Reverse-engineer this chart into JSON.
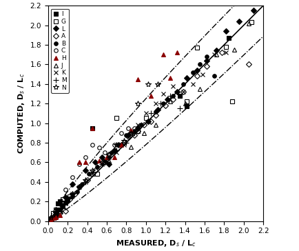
{
  "xlabel": "MEASURED, D$_s$ / L$_c$",
  "ylabel": "COMPUTED, D$_s$ / L$_c$",
  "xlim": [
    0.0,
    2.2
  ],
  "ylim": [
    0.0,
    2.2
  ],
  "xticks": [
    0.0,
    0.2,
    0.4,
    0.6,
    0.8,
    1.0,
    1.2,
    1.4,
    1.6,
    1.8,
    2.0,
    2.2
  ],
  "yticks": [
    0.0,
    0.2,
    0.4,
    0.6,
    0.8,
    1.0,
    1.2,
    1.4,
    1.6,
    1.8,
    2.0,
    2.2
  ],
  "series": {
    "I": {
      "marker": "s",
      "color": "#000000",
      "filled": true,
      "ms": 5,
      "x": [
        0.03,
        0.05,
        0.07,
        0.09,
        0.1,
        0.12,
        0.15,
        0.18,
        0.2,
        0.45,
        1.35,
        1.42,
        1.85
      ],
      "y": [
        0.02,
        0.04,
        0.05,
        0.12,
        0.18,
        0.2,
        0.15,
        0.19,
        0.23,
        0.95,
        1.28,
        1.17,
        1.87
      ]
    },
    "G": {
      "marker": "s",
      "color": "#000000",
      "filled": false,
      "ms": 5,
      "x": [
        0.05,
        0.08,
        0.12,
        0.15,
        0.22,
        0.5,
        0.7,
        0.92,
        1.0,
        1.42,
        1.52,
        1.82,
        1.88,
        2.08
      ],
      "y": [
        0.08,
        0.12,
        0.1,
        0.22,
        0.25,
        0.48,
        1.05,
        0.92,
        1.05,
        1.22,
        1.77,
        1.78,
        1.22,
        2.03
      ]
    },
    "L": {
      "marker": "D",
      "color": "#000000",
      "filled": true,
      "ms": 4,
      "x": [
        0.03,
        0.05,
        0.08,
        0.12,
        0.18,
        0.25,
        0.38,
        0.48,
        0.55,
        0.62,
        0.68,
        0.75,
        0.82,
        0.92,
        1.02,
        1.12,
        1.22,
        1.32,
        1.42,
        1.52,
        1.62,
        1.72,
        1.82,
        1.95,
        2.1
      ],
      "y": [
        0.01,
        0.03,
        0.06,
        0.18,
        0.24,
        0.38,
        0.52,
        0.6,
        0.65,
        0.58,
        0.72,
        0.78,
        0.88,
        0.95,
        1.02,
        1.14,
        1.24,
        1.32,
        1.46,
        1.54,
        1.64,
        1.74,
        1.94,
        2.04,
        2.15
      ]
    },
    "A": {
      "marker": "D",
      "color": "#000000",
      "filled": false,
      "ms": 4,
      "x": [
        0.08,
        0.12,
        0.18,
        0.22,
        0.28,
        0.32,
        0.4,
        0.48,
        0.52,
        0.58,
        0.62,
        0.68,
        0.72,
        0.78,
        0.82,
        0.88,
        0.92,
        0.98,
        1.05,
        1.1,
        1.2,
        1.28,
        1.38,
        1.52,
        1.62,
        1.78,
        2.05
      ],
      "y": [
        0.04,
        0.08,
        0.1,
        0.22,
        0.28,
        0.35,
        0.42,
        0.52,
        0.58,
        0.6,
        0.68,
        0.72,
        0.78,
        0.8,
        0.86,
        0.88,
        0.92,
        0.98,
        1.02,
        1.08,
        1.18,
        1.24,
        1.32,
        1.48,
        1.58,
        1.72,
        1.6
      ]
    },
    "B": {
      "marker": "o",
      "color": "#000000",
      "filled": true,
      "ms": 4,
      "x": [
        0.03,
        0.05,
        0.08,
        0.12,
        0.15,
        0.2,
        0.25,
        0.3,
        0.35,
        0.42,
        0.5,
        0.58,
        0.65,
        0.72,
        0.8,
        0.88,
        0.95,
        1.02,
        1.1,
        1.18,
        1.28,
        1.38,
        1.48,
        1.55,
        1.62,
        1.7
      ],
      "y": [
        0.01,
        0.03,
        0.06,
        0.12,
        0.15,
        0.2,
        0.25,
        0.3,
        0.38,
        0.48,
        0.55,
        0.62,
        0.7,
        0.78,
        0.88,
        0.92,
        0.98,
        1.02,
        1.12,
        1.2,
        1.28,
        1.4,
        1.52,
        1.6,
        1.68,
        1.48
      ]
    },
    "C": {
      "marker": "o",
      "color": "#000000",
      "filled": false,
      "ms": 4,
      "x": [
        0.08,
        0.12,
        0.18,
        0.25,
        0.32,
        0.38,
        0.45,
        0.52,
        0.58,
        0.62,
        0.68,
        0.75,
        0.82,
        0.88
      ],
      "y": [
        0.08,
        0.12,
        0.32,
        0.45,
        0.58,
        0.65,
        0.78,
        0.75,
        0.7,
        0.65,
        0.78,
        0.9,
        0.95,
        0.95
      ]
    },
    "H": {
      "marker": "^",
      "color": "#8B0000",
      "filled": true,
      "ms": 5,
      "x": [
        0.03,
        0.05,
        0.08,
        0.12,
        0.32,
        0.38,
        0.45,
        0.52,
        0.6,
        0.68,
        0.75,
        0.85,
        0.92,
        1.05,
        1.18,
        1.25,
        1.32
      ],
      "y": [
        0.01,
        0.03,
        0.04,
        0.06,
        0.6,
        0.6,
        0.95,
        0.62,
        0.65,
        0.65,
        0.78,
        0.93,
        1.45,
        1.28,
        1.7,
        1.46,
        1.72
      ]
    },
    "J": {
      "marker": "^",
      "color": "#000000",
      "filled": false,
      "ms": 5,
      "x": [
        0.45,
        0.62,
        0.85,
        0.98,
        1.1,
        1.25,
        1.4,
        1.55,
        1.72,
        1.9,
        2.05
      ],
      "y": [
        0.48,
        0.62,
        0.76,
        0.9,
        0.98,
        1.22,
        1.2,
        1.35,
        1.7,
        1.75,
        2.02
      ]
    },
    "K": {
      "marker": "x",
      "color": "#000000",
      "filled": false,
      "ms": 5,
      "x": [
        0.08,
        0.12,
        0.18,
        0.25,
        0.32,
        0.38,
        0.45,
        0.55,
        0.62,
        0.7,
        0.78,
        0.85,
        0.92,
        1.0,
        1.1,
        1.18,
        1.28,
        1.38,
        1.48,
        1.58,
        1.7,
        1.82
      ],
      "y": [
        0.08,
        0.12,
        0.18,
        0.28,
        0.35,
        0.4,
        0.5,
        0.58,
        0.65,
        0.7,
        0.78,
        0.9,
        0.98,
        1.1,
        1.2,
        1.3,
        1.38,
        1.32,
        1.4,
        1.5,
        1.7,
        1.72
      ]
    },
    "M": {
      "marker": "+",
      "color": "#000000",
      "filled": false,
      "ms": 6,
      "x": [
        0.25,
        0.32,
        0.38,
        0.45,
        0.55,
        0.62,
        0.7,
        0.8,
        0.88,
        0.95,
        1.05,
        1.15,
        1.25,
        1.35
      ],
      "y": [
        0.28,
        0.35,
        0.4,
        0.5,
        0.58,
        0.65,
        0.72,
        0.8,
        0.9,
        0.98,
        1.1,
        1.2,
        1.28,
        1.15
      ]
    },
    "N": {
      "marker": "*",
      "color": "#000000",
      "filled": false,
      "ms": 6,
      "x": [
        0.03,
        0.08,
        0.12,
        0.18,
        0.25,
        0.32,
        0.38,
        0.45,
        0.55,
        0.62,
        0.7,
        0.78,
        0.85,
        0.92,
        1.02,
        1.12
      ],
      "y": [
        0.04,
        0.08,
        0.12,
        0.2,
        0.28,
        0.35,
        0.42,
        0.52,
        0.6,
        0.68,
        0.78,
        0.82,
        0.9,
        1.2,
        1.4,
        1.4
      ]
    }
  }
}
